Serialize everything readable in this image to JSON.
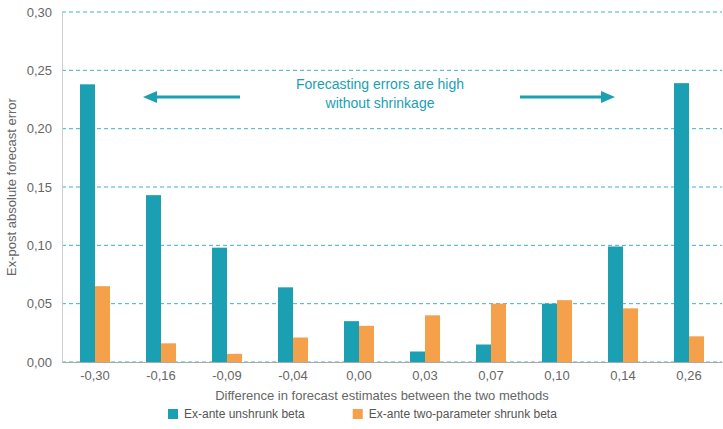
{
  "chart_data": {
    "type": "bar",
    "x_label": "Difference in forecast estimates between the two methods",
    "y_label": "Ex-post absolute forecast error",
    "annotation": [
      "Forecasting errors are high",
      "without shrinkage"
    ],
    "categories": [
      "-0,30",
      "-0,16",
      "-0,09",
      "-0,04",
      "0,00",
      "0,03",
      "0,07",
      "0,10",
      "0,14",
      "0,26"
    ],
    "series": [
      {
        "name": "Ex-ante unshrunk beta",
        "color": "#1b9fb3",
        "values": [
          0.238,
          0.143,
          0.098,
          0.064,
          0.035,
          0.009,
          0.015,
          0.05,
          0.099,
          0.239
        ]
      },
      {
        "name": "Ex-ante two-parameter shrunk beta",
        "color": "#f5a04a",
        "values": [
          0.065,
          0.016,
          0.007,
          0.021,
          0.031,
          0.04,
          0.05,
          0.053,
          0.046,
          0.022
        ]
      }
    ],
    "ylim": [
      0,
      0.3
    ],
    "yticks": [
      {
        "value": 0,
        "label": "0,00"
      },
      {
        "value": 0.05,
        "label": "0,05"
      },
      {
        "value": 0.1,
        "label": "0,10"
      },
      {
        "value": 0.15,
        "label": "0,15"
      },
      {
        "value": 0.2,
        "label": "0,20"
      },
      {
        "value": 0.25,
        "label": "0,25"
      },
      {
        "value": 0.3,
        "label": "0,30"
      }
    ],
    "grid": true,
    "legend": "bottom"
  }
}
